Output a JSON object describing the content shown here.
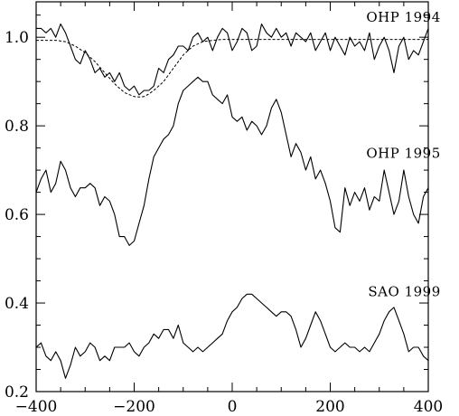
{
  "chart_data": {
    "type": "line",
    "title": "",
    "xlabel": "",
    "ylabel": "",
    "xlim": [
      -400,
      400
    ],
    "ylim": [
      0.2,
      1.08
    ],
    "x_ticks": [
      -400,
      -200,
      0,
      200,
      400
    ],
    "x_tick_labels": [
      "−400",
      "−200",
      "0",
      "200",
      "400"
    ],
    "y_ticks": [
      0.2,
      0.4,
      0.6,
      0.8,
      1.0
    ],
    "y_tick_labels": [
      "0.2",
      "0.4",
      "0.6",
      "0.8",
      "1.0"
    ],
    "grid": false,
    "series": [
      {
        "name": "OHP 1994",
        "label_at": [
          300,
          1.035
        ],
        "style": "solid",
        "x": [
          -400,
          -390,
          -380,
          -370,
          -360,
          -350,
          -340,
          -330,
          -320,
          -310,
          -300,
          -290,
          -280,
          -270,
          -260,
          -250,
          -240,
          -230,
          -220,
          -210,
          -200,
          -190,
          -180,
          -170,
          -160,
          -150,
          -140,
          -130,
          -120,
          -110,
          -100,
          -90,
          -80,
          -70,
          -60,
          -50,
          -40,
          -30,
          -20,
          -10,
          0,
          10,
          20,
          30,
          40,
          50,
          60,
          70,
          80,
          90,
          100,
          110,
          120,
          130,
          140,
          150,
          160,
          170,
          180,
          190,
          200,
          210,
          220,
          230,
          240,
          250,
          260,
          270,
          280,
          290,
          300,
          310,
          320,
          330,
          340,
          350,
          360,
          370,
          380,
          390,
          400
        ],
        "values": [
          1.02,
          1.02,
          1.01,
          1.02,
          1.0,
          1.03,
          1.01,
          0.98,
          0.95,
          0.94,
          0.97,
          0.95,
          0.92,
          0.93,
          0.91,
          0.92,
          0.9,
          0.92,
          0.89,
          0.88,
          0.89,
          0.87,
          0.88,
          0.88,
          0.89,
          0.93,
          0.92,
          0.95,
          0.96,
          0.98,
          0.98,
          0.97,
          1.0,
          1.01,
          0.99,
          1.0,
          0.97,
          1.0,
          1.02,
          1.01,
          0.97,
          0.99,
          1.02,
          1.01,
          0.97,
          0.98,
          1.03,
          1.01,
          1.0,
          1.02,
          1.0,
          1.01,
          0.98,
          1.01,
          1.0,
          0.99,
          1.01,
          0.97,
          0.99,
          1.01,
          0.97,
          1.0,
          0.98,
          0.96,
          1.0,
          0.98,
          0.99,
          0.97,
          1.01,
          0.95,
          0.98,
          1.0,
          0.97,
          0.92,
          0.98,
          1.0,
          0.95,
          0.97,
          0.96,
          0.99,
          1.02
        ]
      },
      {
        "name": "",
        "style": "dashed",
        "x": [
          -400,
          -380,
          -360,
          -340,
          -320,
          -300,
          -280,
          -260,
          -240,
          -220,
          -200,
          -190,
          -180,
          -170,
          -160,
          -140,
          -120,
          -100,
          -80,
          -60,
          -40,
          -20,
          0,
          50,
          100,
          150,
          200,
          250,
          300,
          350,
          400
        ],
        "values": [
          0.993,
          0.993,
          0.993,
          0.99,
          0.98,
          0.965,
          0.945,
          0.92,
          0.895,
          0.875,
          0.866,
          0.865,
          0.866,
          0.872,
          0.88,
          0.9,
          0.93,
          0.96,
          0.98,
          0.99,
          0.993,
          0.995,
          0.995,
          0.995,
          0.995,
          0.995,
          0.995,
          0.995,
          0.995,
          0.995,
          0.995
        ]
      },
      {
        "name": "OHP 1995",
        "label_at": [
          300,
          0.728
        ],
        "style": "solid",
        "x": [
          -400,
          -390,
          -380,
          -370,
          -360,
          -350,
          -340,
          -330,
          -320,
          -310,
          -300,
          -290,
          -280,
          -270,
          -260,
          -250,
          -240,
          -230,
          -220,
          -210,
          -200,
          -190,
          -180,
          -170,
          -160,
          -150,
          -140,
          -130,
          -120,
          -110,
          -100,
          -90,
          -80,
          -70,
          -60,
          -50,
          -40,
          -30,
          -20,
          -10,
          0,
          10,
          20,
          30,
          40,
          50,
          60,
          70,
          80,
          90,
          100,
          110,
          120,
          130,
          140,
          150,
          160,
          170,
          180,
          190,
          200,
          210,
          220,
          230,
          240,
          250,
          260,
          270,
          280,
          290,
          300,
          310,
          320,
          330,
          340,
          350,
          360,
          370,
          380,
          390,
          400
        ],
        "values": [
          0.65,
          0.68,
          0.7,
          0.65,
          0.67,
          0.72,
          0.7,
          0.66,
          0.64,
          0.66,
          0.66,
          0.67,
          0.66,
          0.62,
          0.64,
          0.63,
          0.6,
          0.55,
          0.55,
          0.53,
          0.54,
          0.58,
          0.62,
          0.68,
          0.73,
          0.75,
          0.77,
          0.78,
          0.8,
          0.85,
          0.88,
          0.89,
          0.9,
          0.91,
          0.9,
          0.9,
          0.87,
          0.86,
          0.85,
          0.87,
          0.82,
          0.81,
          0.82,
          0.79,
          0.81,
          0.8,
          0.78,
          0.8,
          0.84,
          0.86,
          0.83,
          0.78,
          0.73,
          0.76,
          0.74,
          0.7,
          0.73,
          0.68,
          0.7,
          0.67,
          0.63,
          0.57,
          0.56,
          0.66,
          0.62,
          0.65,
          0.63,
          0.66,
          0.61,
          0.64,
          0.63,
          0.7,
          0.65,
          0.6,
          0.63,
          0.7,
          0.64,
          0.6,
          0.58,
          0.64,
          0.66
        ]
      },
      {
        "name": "SAO 1999",
        "label_at": [
          300,
          0.415
        ],
        "style": "solid",
        "x": [
          -400,
          -390,
          -380,
          -370,
          -360,
          -350,
          -340,
          -330,
          -320,
          -310,
          -300,
          -290,
          -280,
          -270,
          -260,
          -250,
          -240,
          -230,
          -220,
          -210,
          -200,
          -190,
          -180,
          -170,
          -160,
          -150,
          -140,
          -130,
          -120,
          -110,
          -100,
          -90,
          -80,
          -70,
          -60,
          -50,
          -40,
          -30,
          -20,
          -10,
          0,
          10,
          20,
          30,
          40,
          50,
          60,
          70,
          80,
          90,
          100,
          110,
          120,
          130,
          140,
          150,
          160,
          170,
          180,
          190,
          200,
          210,
          220,
          230,
          240,
          250,
          260,
          270,
          280,
          290,
          300,
          310,
          320,
          330,
          340,
          350,
          360,
          370,
          380,
          390,
          400
        ],
        "values": [
          0.3,
          0.31,
          0.28,
          0.27,
          0.29,
          0.27,
          0.23,
          0.26,
          0.3,
          0.28,
          0.29,
          0.31,
          0.3,
          0.27,
          0.28,
          0.27,
          0.3,
          0.3,
          0.3,
          0.31,
          0.29,
          0.28,
          0.3,
          0.31,
          0.33,
          0.32,
          0.34,
          0.34,
          0.32,
          0.35,
          0.31,
          0.3,
          0.29,
          0.3,
          0.29,
          0.3,
          0.31,
          0.32,
          0.33,
          0.36,
          0.38,
          0.39,
          0.41,
          0.42,
          0.42,
          0.41,
          0.4,
          0.39,
          0.38,
          0.37,
          0.38,
          0.38,
          0.37,
          0.34,
          0.3,
          0.32,
          0.35,
          0.38,
          0.36,
          0.33,
          0.3,
          0.29,
          0.3,
          0.31,
          0.3,
          0.3,
          0.29,
          0.3,
          0.29,
          0.31,
          0.33,
          0.36,
          0.38,
          0.39,
          0.36,
          0.33,
          0.29,
          0.3,
          0.3,
          0.28,
          0.27
        ]
      }
    ]
  }
}
